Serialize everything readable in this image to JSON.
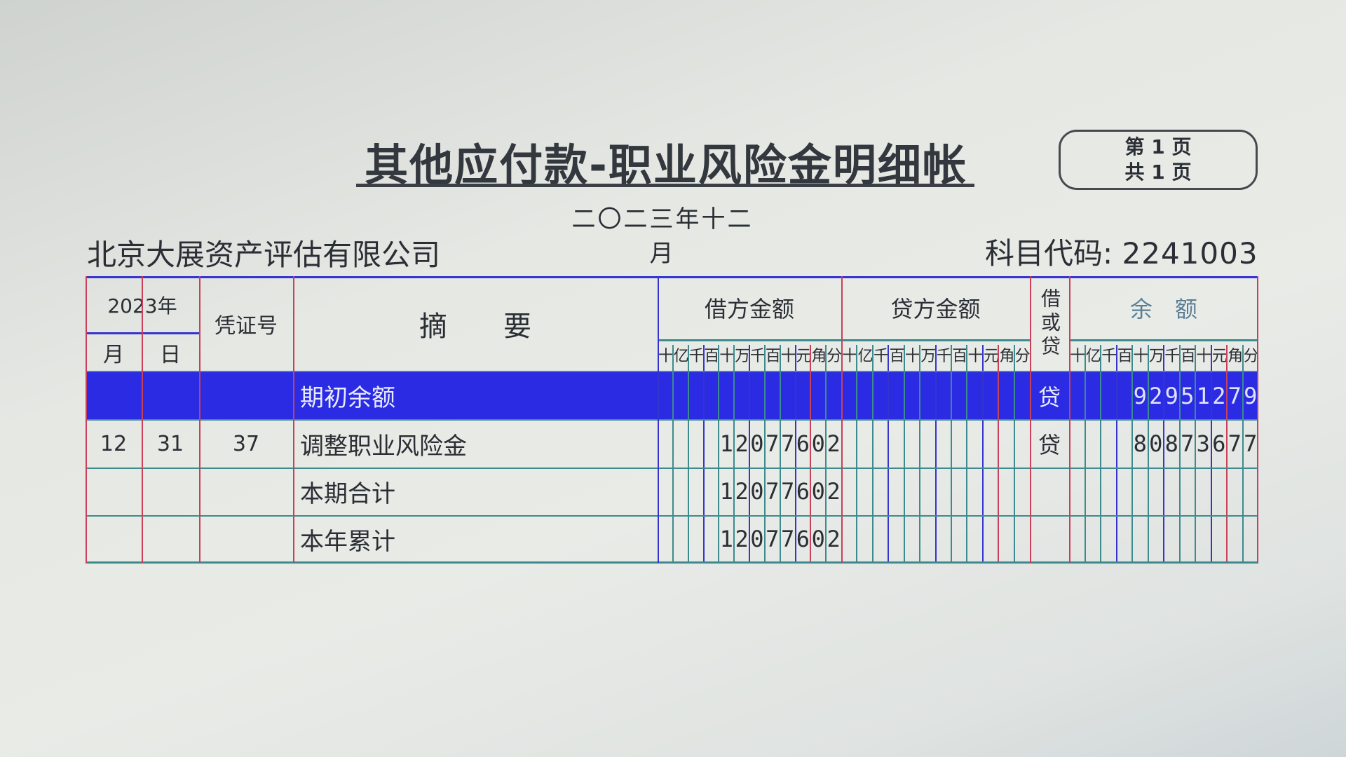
{
  "title": "其他应付款-职业风险金明细帐",
  "period": "二〇二三年十二月",
  "company": "北京大展资产评估有限公司",
  "account_code_label": "科目代码:",
  "account_code": "2241003",
  "page_indicator": {
    "current_label": "第 1 页",
    "total_label": "共 1 页"
  },
  "table": {
    "headers": {
      "year": "2023年",
      "month": "月",
      "day": "日",
      "voucher": "凭证号",
      "summary": "摘　　要",
      "debit": "借方金额",
      "credit": "贷方金额",
      "direction": "借或贷",
      "balance": "余　额"
    },
    "digit_units": [
      "十",
      "亿",
      "千",
      "百",
      "十",
      "万",
      "千",
      "百",
      "十",
      "元",
      "角",
      "分"
    ],
    "rows": [
      {
        "month": "",
        "day": "",
        "voucher": "",
        "summary": "期初余额",
        "debit": "",
        "credit": "",
        "direction": "贷",
        "balance": "92951279",
        "selected": true
      },
      {
        "month": "12",
        "day": "31",
        "voucher": "37",
        "summary": "调整职业风险金",
        "debit": "12077602",
        "credit": "",
        "direction": "贷",
        "balance": "80873677"
      },
      {
        "month": "",
        "day": "",
        "voucher": "",
        "summary": "本期合计",
        "debit": "12077602",
        "credit": "",
        "direction": "",
        "balance": ""
      },
      {
        "month": "",
        "day": "",
        "voucher": "",
        "summary": "本年累计",
        "debit": "12077602",
        "credit": "",
        "direction": "",
        "balance": ""
      }
    ]
  },
  "colors": {
    "selection": "#2b2be3",
    "grid_blue": "#3434d0",
    "grid_teal": "#3d8b8e",
    "grid_red": "#c8405a"
  }
}
